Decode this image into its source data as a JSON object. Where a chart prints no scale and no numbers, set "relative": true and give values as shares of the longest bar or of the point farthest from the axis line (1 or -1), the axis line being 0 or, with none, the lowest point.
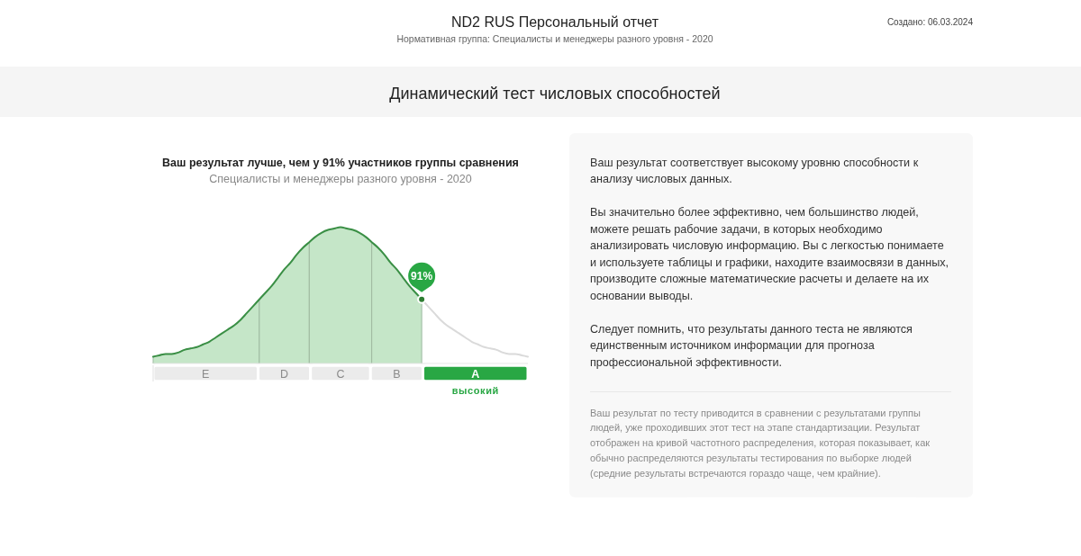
{
  "chart_data": [
    {
      "type": "other",
      "title": "ND2 RUS Персональный отчет",
      "subtitle": "Нормативная группа: Специалисты и менеджеры разного уровня - 2020",
      "annotations": [
        "Создано: 06.03.2024"
      ]
    },
    {
      "type": "other",
      "title": "Динамический тест числовых способностей"
    },
    {
      "type": "area",
      "title": "Ваш результат лучше, чем у 91% участников группы сравнения",
      "subtitle": "Специалисты и менеджеры разного уровня - 2020",
      "relative": true,
      "categories": [
        null,
        null,
        null,
        null,
        null,
        null,
        null,
        null,
        null,
        null,
        null,
        null,
        null,
        null,
        null,
        null,
        null,
        null,
        null,
        null,
        null,
        null,
        null,
        null,
        null,
        null,
        null,
        null,
        null,
        null,
        null,
        null,
        null,
        null,
        null,
        null,
        null,
        null,
        null,
        null,
        null,
        null,
        null,
        null,
        null,
        null,
        null,
        null,
        null,
        null,
        null,
        null,
        null,
        null,
        null,
        null,
        null,
        null,
        null,
        null,
        null
      ],
      "series": [
        {
          "type": "area",
          "color": "#c5e6c8",
          "values": [
            0.05,
            0.06,
            0.07,
            0.07,
            0.08,
            0.1,
            0.11,
            0.12,
            0.14,
            0.16,
            0.19,
            0.22,
            0.25,
            0.28,
            0.32,
            0.37,
            0.42,
            0.47,
            null,
            null,
            null,
            null,
            null,
            null,
            null,
            null,
            null,
            null,
            null,
            null,
            null,
            null,
            null,
            null,
            null,
            null,
            null,
            null,
            null,
            null,
            null,
            null,
            null,
            null,
            null,
            null,
            null,
            null,
            null,
            null,
            null,
            null,
            null,
            null,
            null,
            null,
            null,
            null,
            null,
            null,
            null
          ]
        },
        {
          "type": "area",
          "color": "#c5e6c8",
          "values": [
            null,
            null,
            null,
            null,
            null,
            null,
            null,
            null,
            null,
            null,
            null,
            null,
            null,
            null,
            null,
            null,
            null,
            0.47,
            0.52,
            0.57,
            0.63,
            0.69,
            0.74,
            0.8,
            0.85,
            0.89,
            null,
            null,
            null,
            null,
            null,
            null,
            null,
            null,
            null,
            null,
            null,
            null,
            null,
            null,
            null,
            null,
            null,
            null,
            null,
            null,
            null,
            null,
            null,
            null,
            null,
            null,
            null,
            null,
            null,
            null,
            null,
            null,
            null,
            null,
            null
          ]
        },
        {
          "type": "area",
          "color": "#c5e6c8",
          "values": [
            null,
            null,
            null,
            null,
            null,
            null,
            null,
            null,
            null,
            null,
            null,
            null,
            null,
            null,
            null,
            null,
            null,
            null,
            null,
            null,
            null,
            null,
            null,
            null,
            null,
            0.89,
            0.93,
            0.96,
            0.98,
            0.99,
            1,
            0.99,
            0.98,
            0.96,
            0.93,
            0.89,
            null,
            null,
            null,
            null,
            null,
            null,
            null,
            null,
            null,
            null,
            null,
            null,
            null,
            null,
            null,
            null,
            null,
            null,
            null,
            null,
            null,
            null,
            null,
            null,
            null
          ]
        },
        {
          "type": "area",
          "color": "#c5e6c8",
          "values": [
            null,
            null,
            null,
            null,
            null,
            null,
            null,
            null,
            null,
            null,
            null,
            null,
            null,
            null,
            null,
            null,
            null,
            null,
            null,
            null,
            null,
            null,
            null,
            null,
            null,
            null,
            null,
            null,
            null,
            null,
            null,
            null,
            null,
            null,
            null,
            0.89,
            0.85,
            0.8,
            0.74,
            0.69,
            0.63,
            0.57,
            0.52,
            0.47,
            null,
            null,
            null,
            null,
            null,
            null,
            null,
            null,
            null,
            null,
            null,
            null,
            null,
            null,
            null,
            null,
            null
          ]
        },
        {
          "type": "line",
          "color": "#3a8f45",
          "values": [
            0.05,
            0.06,
            0.07,
            0.07,
            0.08,
            0.1,
            0.11,
            0.12,
            0.14,
            0.16,
            0.19,
            0.22,
            0.25,
            0.28,
            0.32,
            0.37,
            0.42,
            0.47,
            0.52,
            0.57,
            0.63,
            0.69,
            0.74,
            0.8,
            0.85,
            0.89,
            0.93,
            0.96,
            0.98,
            0.99,
            1,
            0.99,
            0.98,
            0.96,
            0.93,
            0.89,
            0.85,
            0.8,
            0.74,
            0.69,
            0.63,
            0.57,
            0.52,
            0.47,
            null,
            null,
            null,
            null,
            null,
            null,
            null,
            null,
            null,
            null,
            null,
            null,
            null,
            null,
            null,
            null,
            null
          ]
        },
        {
          "type": "line",
          "color": "#dadada",
          "values": [
            null,
            null,
            null,
            null,
            null,
            null,
            null,
            null,
            null,
            null,
            null,
            null,
            null,
            null,
            null,
            null,
            null,
            null,
            null,
            null,
            null,
            null,
            null,
            null,
            null,
            null,
            null,
            null,
            null,
            null,
            null,
            null,
            null,
            null,
            null,
            null,
            null,
            null,
            null,
            null,
            null,
            null,
            null,
            0.47,
            0.42,
            0.37,
            0.32,
            0.28,
            0.25,
            0.22,
            0.19,
            0.16,
            0.14,
            0.12,
            0.11,
            0.1,
            0.08,
            0.07,
            0.07,
            0.06,
            0.05
          ]
        }
      ],
      "annotations": [
        {
          "text": "91%",
          "y": 0.47
        }
      ]
    },
    {
      "type": "bar",
      "orientation": "horizontal",
      "stacked": true,
      "relative": true,
      "categories": [
        null
      ],
      "series": [
        {
          "name": "E",
          "color": "#ebebeb",
          "values": [
            0.28
          ]
        },
        {
          "name": "D",
          "color": "#ebebeb",
          "values": [
            0.14
          ]
        },
        {
          "name": "C",
          "color": "#ebebeb",
          "values": [
            0.16
          ]
        },
        {
          "name": "B",
          "color": "#ebebeb",
          "values": [
            0.14
          ]
        },
        {
          "name": "A",
          "color": "#29a744",
          "values": [
            0.28
          ]
        }
      ],
      "annotations": [
        "высокий"
      ]
    },
    {
      "type": "other",
      "annotations": [
        "Ваш результат соответствует высокому уровню способности к анализу числовых данных.",
        "Вы значительно более эффективно, чем большинство людей, можете решать рабочие задачи, в которых необходимо анализировать числовую информацию. Вы с легкостью понимаете и используете таблицы и графики, находите взаимосвязи в данных, производите сложные математические расчеты и делаете на их основании выводы.",
        "Следует помнить, что результаты данного теста не являются единственным источником информации для прогноза профессиональной эффективности.",
        "Ваш результат по тесту приводится в сравнении с результатами группы людей, уже проходивших этот тест на этапе стандартизации. Результат отображен на кривой частотного распределения, которая показывает, как обычно распределяются результаты тестирования по выборке людей (средние результаты встречаются гораздо чаще, чем крайние)."
      ]
    }
  ]
}
